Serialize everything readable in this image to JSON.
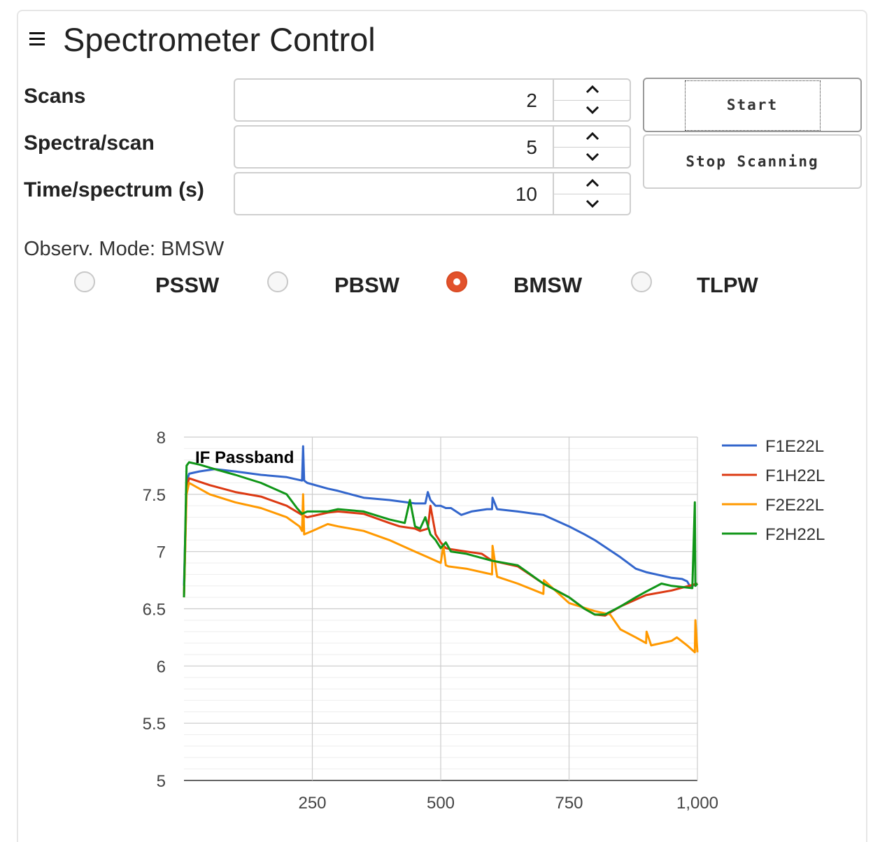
{
  "header": {
    "title": "Spectrometer Control",
    "menu_icon": "hamburger-menu-icon"
  },
  "controls": {
    "scans": {
      "label": "Scans",
      "value": "2"
    },
    "spectra_per_scan": {
      "label": "Spectra/scan",
      "value": "5"
    },
    "time_per_spectrum": {
      "label": "Time/spectrum (s)",
      "value": "10"
    }
  },
  "buttons": {
    "start": "Start",
    "stop": "Stop Scanning"
  },
  "mode": {
    "label": "Observ. Mode: BMSW",
    "options": [
      {
        "label": "PSSW",
        "checked": false
      },
      {
        "label": "PBSW",
        "checked": false
      },
      {
        "label": "BMSW",
        "checked": true
      },
      {
        "label": "TLPW",
        "checked": false
      }
    ],
    "accent_color": "#e2522c"
  },
  "chart_data": {
    "type": "line",
    "title": "IF Passband",
    "xlabel": "",
    "ylabel": "",
    "xlim": [
      0,
      1000
    ],
    "ylim": [
      5,
      8
    ],
    "x_ticks": [
      250,
      500,
      750,
      1000
    ],
    "x_tick_labels": [
      "250",
      "500",
      "750",
      "1,000"
    ],
    "y_ticks": [
      5,
      5.5,
      6,
      6.5,
      7,
      7.5,
      8
    ],
    "y_tick_labels": [
      "5",
      "5.5",
      "6",
      "6.5",
      "7",
      "7.5",
      "8"
    ],
    "grid": true,
    "legend": "right",
    "series": [
      {
        "name": "F1E22L",
        "color": "#3366cc",
        "x": [
          0,
          5,
          10,
          30,
          60,
          100,
          150,
          200,
          230,
          232,
          234,
          240,
          280,
          300,
          350,
          400,
          450,
          470,
          475,
          480,
          490,
          500,
          510,
          520,
          540,
          560,
          590,
          600,
          601,
          610,
          650,
          700,
          750,
          780,
          800,
          850,
          880,
          900,
          950,
          970,
          980,
          985,
          990,
          1000
        ],
        "y": [
          6.7,
          7.6,
          7.68,
          7.7,
          7.72,
          7.7,
          7.67,
          7.65,
          7.62,
          7.92,
          7.62,
          7.6,
          7.55,
          7.53,
          7.47,
          7.45,
          7.42,
          7.42,
          7.52,
          7.45,
          7.4,
          7.4,
          7.38,
          7.38,
          7.32,
          7.35,
          7.37,
          7.37,
          7.47,
          7.37,
          7.35,
          7.32,
          7.22,
          7.15,
          7.1,
          6.95,
          6.85,
          6.82,
          6.77,
          6.76,
          6.74,
          6.7,
          6.7,
          6.72
        ]
      },
      {
        "name": "F1H22L",
        "color": "#dc3912",
        "x": [
          0,
          5,
          10,
          50,
          100,
          150,
          200,
          230,
          240,
          280,
          300,
          350,
          400,
          420,
          450,
          460,
          475,
          480,
          490,
          500,
          510,
          520,
          550,
          580,
          600,
          620,
          650,
          700,
          750,
          780,
          800,
          820,
          850,
          880,
          900,
          950,
          1000
        ],
        "y": [
          6.6,
          7.55,
          7.64,
          7.58,
          7.52,
          7.48,
          7.4,
          7.32,
          7.3,
          7.34,
          7.35,
          7.33,
          7.25,
          7.22,
          7.2,
          7.18,
          7.2,
          7.4,
          7.15,
          7.08,
          7.03,
          7.02,
          7.0,
          6.98,
          6.92,
          6.9,
          6.87,
          6.72,
          6.6,
          6.5,
          6.45,
          6.44,
          6.52,
          6.58,
          6.62,
          6.66,
          6.72
        ]
      },
      {
        "name": "F2E22L",
        "color": "#ff9900",
        "x": [
          0,
          5,
          10,
          50,
          100,
          150,
          200,
          225,
          230,
          232,
          234,
          250,
          280,
          300,
          350,
          400,
          450,
          475,
          500,
          505,
          510,
          515,
          550,
          600,
          601,
          610,
          650,
          700,
          701,
          750,
          800,
          830,
          850,
          880,
          900,
          901,
          910,
          950,
          960,
          980,
          995,
          996,
          1000
        ],
        "y": [
          6.6,
          7.5,
          7.6,
          7.5,
          7.43,
          7.38,
          7.3,
          7.22,
          7.18,
          7.5,
          7.15,
          7.18,
          7.24,
          7.22,
          7.18,
          7.1,
          7.0,
          6.95,
          6.9,
          7.05,
          6.88,
          6.87,
          6.85,
          6.8,
          7.05,
          6.78,
          6.72,
          6.63,
          6.75,
          6.55,
          6.48,
          6.45,
          6.32,
          6.25,
          6.2,
          6.3,
          6.18,
          6.22,
          6.25,
          6.18,
          6.12,
          6.4,
          6.12
        ]
      },
      {
        "name": "F2H22L",
        "color": "#109618",
        "x": [
          0,
          5,
          10,
          30,
          60,
          100,
          150,
          200,
          220,
          230,
          240,
          280,
          300,
          350,
          400,
          430,
          440,
          450,
          460,
          470,
          480,
          490,
          500,
          510,
          520,
          550,
          600,
          650,
          700,
          750,
          780,
          800,
          820,
          850,
          880,
          900,
          930,
          950,
          990,
          995,
          996,
          1000
        ],
        "y": [
          6.6,
          7.75,
          7.78,
          7.76,
          7.72,
          7.67,
          7.6,
          7.5,
          7.38,
          7.33,
          7.35,
          7.35,
          7.37,
          7.35,
          7.28,
          7.25,
          7.45,
          7.22,
          7.2,
          7.3,
          7.15,
          7.1,
          7.03,
          7.08,
          7.0,
          6.98,
          6.92,
          6.88,
          6.72,
          6.6,
          6.5,
          6.45,
          6.45,
          6.52,
          6.6,
          6.65,
          6.72,
          6.7,
          6.68,
          7.43,
          6.7,
          6.72
        ]
      }
    ]
  }
}
